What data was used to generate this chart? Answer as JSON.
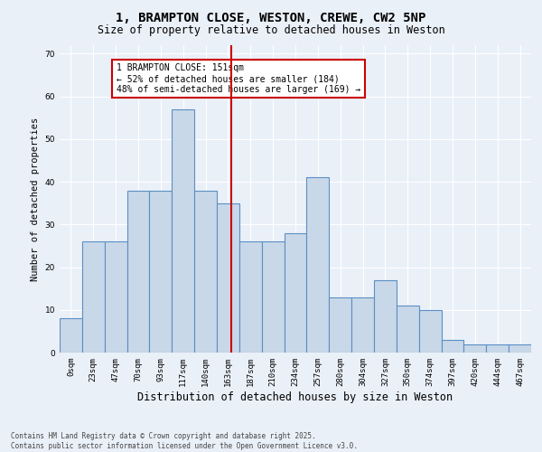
{
  "title1": "1, BRAMPTON CLOSE, WESTON, CREWE, CW2 5NP",
  "title2": "Size of property relative to detached houses in Weston",
  "xlabel": "Distribution of detached houses by size in Weston",
  "ylabel": "Number of detached properties",
  "categories": [
    "0sqm",
    "23sqm",
    "47sqm",
    "70sqm",
    "93sqm",
    "117sqm",
    "140sqm",
    "163sqm",
    "187sqm",
    "210sqm",
    "234sqm",
    "257sqm",
    "280sqm",
    "304sqm",
    "327sqm",
    "350sqm",
    "374sqm",
    "397sqm",
    "420sqm",
    "444sqm",
    "467sqm"
  ],
  "values": [
    8,
    26,
    26,
    38,
    38,
    57,
    38,
    35,
    26,
    26,
    28,
    41,
    13,
    13,
    17,
    11,
    10,
    3,
    2,
    2,
    2
  ],
  "bar_color": "#c8d8e8",
  "bar_edge_color": "#5b8fc4",
  "bar_edge_width": 0.8,
  "redline_x": 7.65,
  "annotation_text": "1 BRAMPTON CLOSE: 151sqm\n← 52% of detached houses are smaller (184)\n48% of semi-detached houses are larger (169) →",
  "annotation_box_color": "#ffffff",
  "annotation_box_edge_color": "#cc0000",
  "annotation_fontsize": 7,
  "redline_color": "#cc0000",
  "ylim": [
    0,
    72
  ],
  "yticks": [
    0,
    10,
    20,
    30,
    40,
    50,
    60,
    70
  ],
  "background_color": "#eaf0f8",
  "footer_text": "Contains HM Land Registry data © Crown copyright and database right 2025.\nContains public sector information licensed under the Open Government Licence v3.0.",
  "title1_fontsize": 10,
  "title2_fontsize": 8.5,
  "xlabel_fontsize": 8.5,
  "ylabel_fontsize": 7.5,
  "tick_fontsize": 6.5,
  "footer_fontsize": 5.5
}
